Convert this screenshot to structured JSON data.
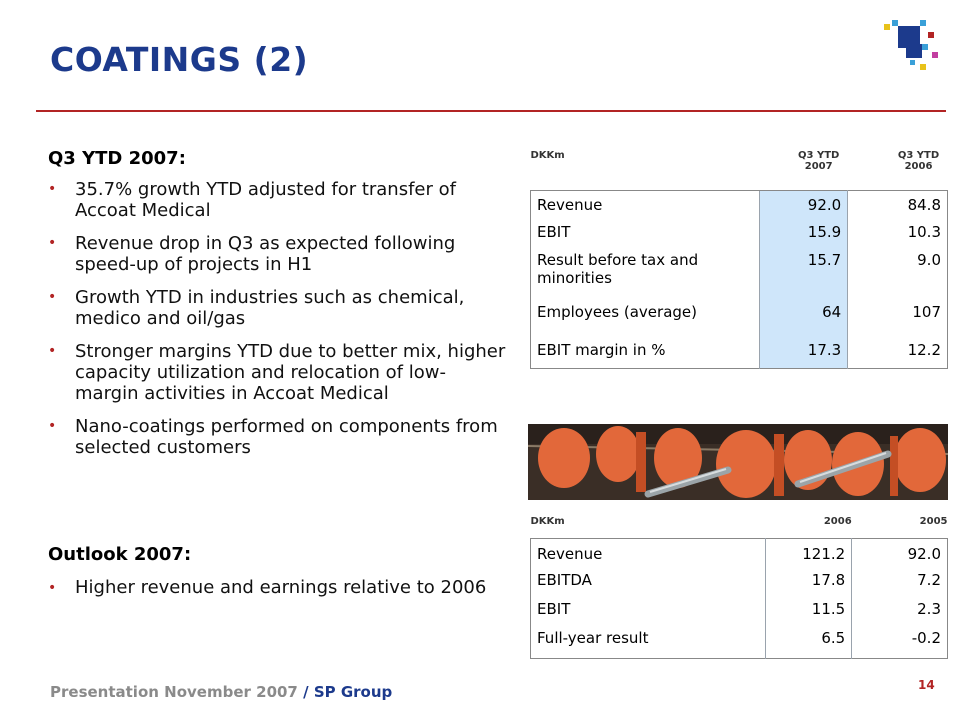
{
  "title": "COATINGS (2)",
  "left": {
    "heading": "Q3 YTD 2007:",
    "bullets": [
      "35.7% growth YTD adjusted for transfer of Accoat Medical",
      "Revenue drop in Q3 as expected following speed-up of projects in H1",
      "Growth YTD in industries such as chemical, medico and oil/gas",
      "Stronger margins YTD due to better mix, higher capacity utilization and relocation of low-margin activities in Accoat Medical",
      "Nano-coatings performed on components from selected customers"
    ],
    "outlook_heading": "Outlook 2007:",
    "outlook_bullets": [
      "Higher revenue and earnings relative to 2006"
    ]
  },
  "table1": {
    "headers": [
      "DKKm",
      "Q3 YTD 2007",
      "Q3 YTD 2006"
    ],
    "rows": [
      [
        "Revenue",
        "92.0",
        "84.8"
      ],
      [
        "EBIT",
        "15.9",
        "10.3"
      ],
      [
        "Result before tax and minorities",
        "15.7",
        "9.0"
      ],
      [
        "Employees (average)",
        "64",
        "107"
      ],
      [
        "EBIT margin in %",
        "17.3",
        "12.2"
      ]
    ]
  },
  "table2": {
    "headers": [
      "DKKm",
      "2006",
      "2005"
    ],
    "rows": [
      [
        "Revenue",
        "121.2",
        "92.0"
      ],
      [
        "EBITDA",
        "17.8",
        "7.2"
      ],
      [
        "EBIT",
        "11.5",
        "2.3"
      ],
      [
        "Full-year result",
        "6.5",
        "-0.2"
      ]
    ]
  },
  "footer": {
    "presentation": "Presentation November 2007",
    "separator": "/",
    "company": "SP Group",
    "page_number": "14"
  },
  "colors": {
    "title": "#1c3a8c",
    "rule": "#b22424",
    "highlight": "#cfe6fa"
  }
}
